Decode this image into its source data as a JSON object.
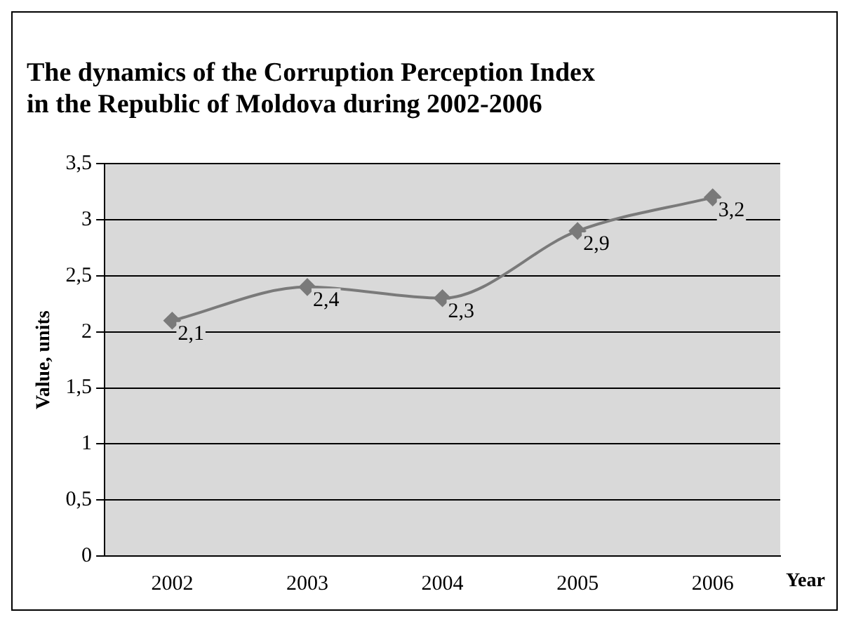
{
  "chart_data": {
    "type": "line",
    "title": "The dynamics of the Corruption Perception Index in the Republic of Moldova during 2002-2006",
    "xlabel": "Year",
    "ylabel": "Value, units",
    "categories": [
      "2002",
      "2003",
      "2004",
      "2005",
      "2006"
    ],
    "series": [
      {
        "color": "#7a7a7a",
        "values": [
          2.1,
          2.4,
          2.3,
          2.9,
          3.2
        ],
        "value_labels": [
          "2,1",
          "2,4",
          "2,3",
          "2,9",
          "3,2"
        ]
      }
    ],
    "ylim": [
      0,
      3.5
    ],
    "yticks": [
      0,
      {
        "value": 0.5,
        "label": "0,5"
      },
      1,
      {
        "value": 1.5,
        "label": "1,5"
      },
      2,
      {
        "value": 2.5,
        "label": "2,5"
      },
      3,
      {
        "value": 3.5,
        "label": "3,5"
      }
    ],
    "grid": "y",
    "legend": false,
    "marker": "diamond",
    "line_style": "solid"
  }
}
